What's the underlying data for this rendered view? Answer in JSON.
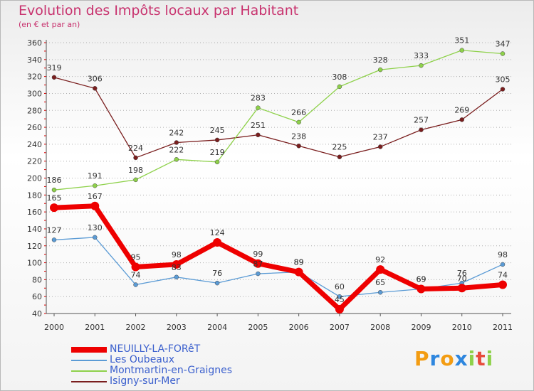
{
  "page": {
    "title": "Evolution des Impôts locaux par Habitant",
    "subtitle": "(en € et par an)"
  },
  "chart_data": {
    "type": "line",
    "title": "Evolution des Impôts locaux par Habitant",
    "subtitle": "(en € et par an)",
    "xlabel": "",
    "ylabel": "",
    "x": [
      "2000",
      "2001",
      "2002",
      "2003",
      "2004",
      "2005",
      "2006",
      "2007",
      "2008",
      "2009",
      "2010",
      "2011"
    ],
    "ylim": [
      40,
      360
    ],
    "yticks": [
      40,
      60,
      80,
      100,
      120,
      140,
      160,
      180,
      200,
      220,
      240,
      260,
      280,
      300,
      320,
      340,
      360
    ],
    "grid": "horizontal-dotted",
    "legend": "bottom-left",
    "series": [
      {
        "name": "NEUILLY-LA-FORêT",
        "color": "#ee0000",
        "values": [
          165,
          167,
          95,
          98,
          124,
          99,
          89,
          45,
          92,
          69,
          70,
          74
        ]
      },
      {
        "name": "Les Oubeaux",
        "color": "#5b9bd5",
        "values": [
          127,
          130,
          74,
          83,
          76,
          87,
          89,
          60,
          65,
          69,
          76,
          98
        ]
      },
      {
        "name": "Montmartin-en-Graignes",
        "color": "#8ed14a",
        "values": [
          186,
          191,
          198,
          222,
          219,
          283,
          266,
          308,
          328,
          333,
          351,
          347
        ]
      },
      {
        "name": "Isigny-sur-Mer",
        "color": "#7a1e1e",
        "values": [
          319,
          306,
          224,
          242,
          245,
          251,
          238,
          225,
          237,
          257,
          269,
          305
        ]
      }
    ]
  },
  "logo": {
    "text": "Proxiti",
    "letters": [
      "P",
      "r",
      "o",
      "x",
      "i",
      "t",
      "i"
    ],
    "colors": [
      "#f39c12",
      "#2e86de",
      "#f39c12",
      "#2e86de",
      "#8ed14a",
      "#e74c3c",
      "#8ed14a"
    ]
  }
}
